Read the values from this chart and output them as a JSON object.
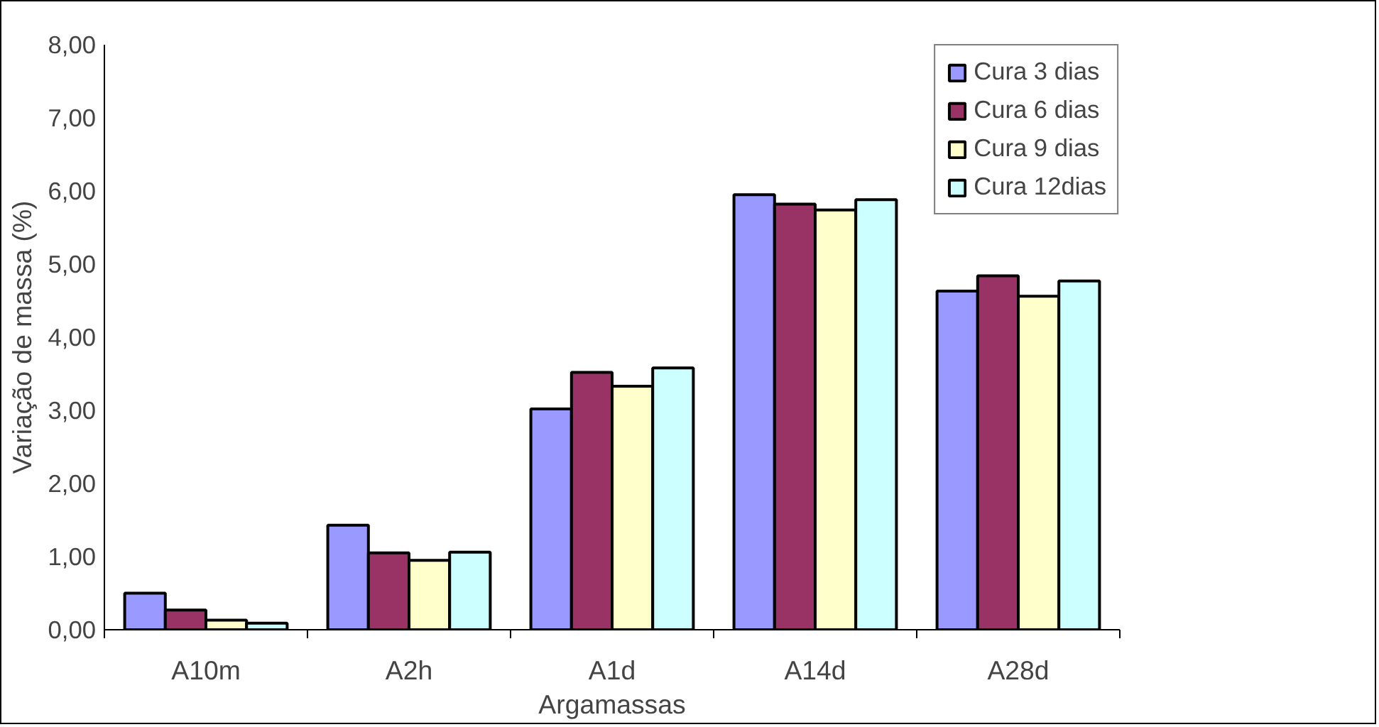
{
  "chart_data": {
    "type": "bar",
    "xlabel": "Argamassas",
    "ylabel": "Variação de massa (%)",
    "categories": [
      "A10m",
      "A2h",
      "A1d",
      "A14d",
      "A28d"
    ],
    "series": [
      {
        "name": "Cura 3 dias",
        "color": "#9999ff",
        "values": [
          0.5,
          1.43,
          3.02,
          5.95,
          4.63
        ]
      },
      {
        "name": "Cura 6 dias",
        "color": "#993366",
        "values": [
          0.27,
          1.05,
          3.52,
          5.82,
          4.84
        ]
      },
      {
        "name": "Cura 9 dias",
        "color": "#ffffcc",
        "values": [
          0.13,
          0.95,
          3.33,
          5.74,
          4.56
        ]
      },
      {
        "name": "Cura 12dias",
        "color": "#ccffff",
        "values": [
          0.09,
          1.06,
          3.58,
          5.88,
          4.77
        ]
      }
    ],
    "ylim": [
      0,
      8
    ],
    "yticks": [
      {
        "value": 0,
        "label": "0,00"
      },
      {
        "value": 1,
        "label": "1,00"
      },
      {
        "value": 2,
        "label": "2,00"
      },
      {
        "value": 3,
        "label": "3,00"
      },
      {
        "value": 4,
        "label": "4,00"
      },
      {
        "value": 5,
        "label": "5,00"
      },
      {
        "value": 6,
        "label": "6,00"
      },
      {
        "value": 7,
        "label": "7,00"
      },
      {
        "value": 8,
        "label": "8,00"
      }
    ],
    "grid": false,
    "legend": "top right"
  }
}
